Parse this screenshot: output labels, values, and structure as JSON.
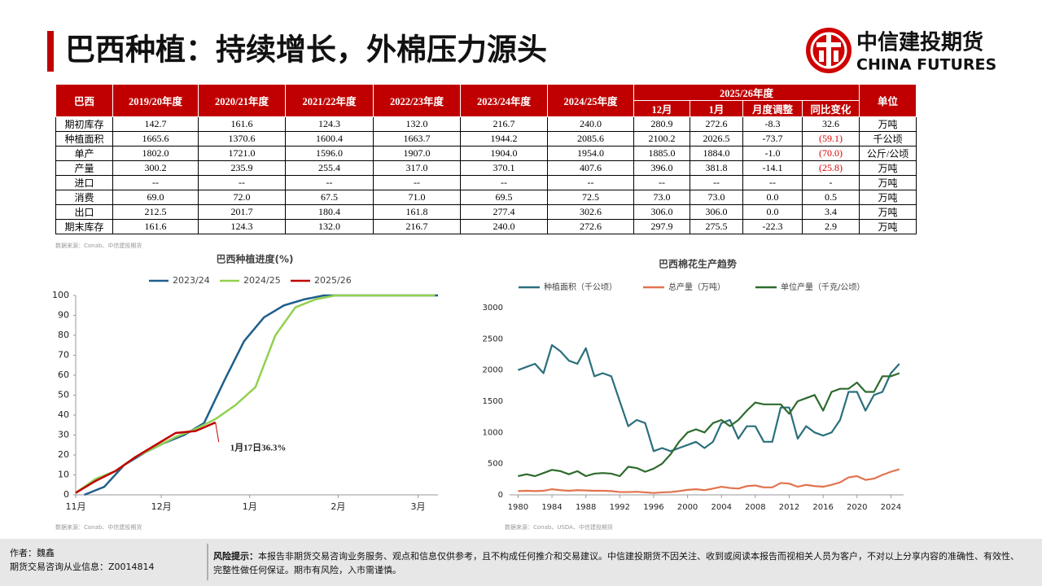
{
  "header": {
    "title": "巴西种植：持续增长，外棉压力源头",
    "logo_cn": "中信建投期货",
    "logo_en": "CHINA FUTURES"
  },
  "table": {
    "corner": "巴西",
    "years": [
      "2019/20年度",
      "2020/21年度",
      "2021/22年度",
      "2022/23年度",
      "2023/24年度",
      "2024/25年度"
    ],
    "group": "2025/26年度",
    "subcolumns": [
      "12月",
      "1月",
      "月度调整",
      "同比变化"
    ],
    "unit_header": "单位",
    "rows": [
      [
        "期初库存",
        "142.7",
        "161.6",
        "124.3",
        "132.0",
        "216.7",
        "240.0",
        "280.9",
        "272.6",
        "-8.3",
        "32.6",
        "万吨"
      ],
      [
        "种植面积",
        "1665.6",
        "1370.6",
        "1600.4",
        "1663.7",
        "1944.2",
        "2085.6",
        "2100.2",
        "2026.5",
        "-73.7",
        "(59.1)",
        "千公顷"
      ],
      [
        "单产",
        "1802.0",
        "1721.0",
        "1596.0",
        "1907.0",
        "1904.0",
        "1954.0",
        "1885.0",
        "1884.0",
        "-1.0",
        "(70.0)",
        "公斤/公顷"
      ],
      [
        "产量",
        "300.2",
        "235.9",
        "255.4",
        "317.0",
        "370.1",
        "407.6",
        "396.0",
        "381.8",
        "-14.1",
        "(25.8)",
        "万吨"
      ],
      [
        "进口",
        "--",
        "--",
        "--",
        "--",
        "--",
        "--",
        "--",
        "--",
        "--",
        "-",
        "万吨"
      ],
      [
        "消费",
        "69.0",
        "72.0",
        "67.5",
        "71.0",
        "69.5",
        "72.5",
        "73.0",
        "73.0",
        "0.0",
        "0.5",
        "万吨"
      ],
      [
        "出口",
        "212.5",
        "201.7",
        "180.4",
        "161.8",
        "277.4",
        "302.6",
        "306.0",
        "306.0",
        "0.0",
        "3.4",
        "万吨"
      ],
      [
        "期末库存",
        "161.6",
        "124.3",
        "132.0",
        "216.7",
        "240.0",
        "272.6",
        "297.9",
        "275.5",
        "-22.3",
        "2.9",
        "万吨"
      ]
    ],
    "source": "数据来源：Conab、中信建投期货"
  },
  "chart_data": [
    {
      "type": "line",
      "title": "巴西种植进度(%)",
      "legend": "top",
      "xlim": [
        0,
        127
      ],
      "xticks": [
        {
          "value": 0,
          "label": "11月"
        },
        {
          "value": 30,
          "label": "12月"
        },
        {
          "value": 61,
          "label": "1月"
        },
        {
          "value": 92,
          "label": "2月"
        },
        {
          "value": 120,
          "label": "3月"
        }
      ],
      "ylim": [
        0,
        100
      ],
      "yticks": [
        0,
        10,
        20,
        30,
        40,
        50,
        60,
        70,
        80,
        90,
        100
      ],
      "grid": false,
      "series": [
        {
          "name": "2023/24",
          "color": "#1f5f8b",
          "x": [
            3,
            10,
            17,
            24,
            31,
            38,
            45,
            52,
            59,
            66,
            73,
            80,
            87,
            94,
            101,
            108,
            115,
            122,
            127
          ],
          "values": [
            0,
            4,
            15,
            21,
            26,
            30,
            36,
            57,
            77,
            89,
            95,
            98,
            100,
            100,
            100,
            100,
            100,
            100,
            100
          ]
        },
        {
          "name": "2024/25",
          "color": "#92d050",
          "x": [
            0,
            7,
            14,
            21,
            28,
            35,
            42,
            49,
            56,
            63,
            70,
            77,
            84,
            91,
            98,
            105,
            112,
            119,
            126
          ],
          "values": [
            1,
            8,
            12,
            19,
            24,
            29,
            33,
            38,
            45,
            54,
            80,
            94,
            98,
            100,
            100,
            100,
            100,
            100,
            100
          ]
        },
        {
          "name": "2025/26",
          "color": "#c00000",
          "x": [
            0,
            7,
            14,
            21,
            28,
            35,
            42,
            49
          ],
          "values": [
            1,
            7,
            12,
            19,
            25,
            31,
            32,
            36.3
          ]
        }
      ],
      "annotations": [
        "1月17日36.3%"
      ],
      "source": "数据来源：Conab、中信建投期货"
    },
    {
      "type": "line",
      "title": "巴西棉花生产趋势",
      "legend": "top",
      "x": [
        1980,
        1981,
        1982,
        1983,
        1984,
        1985,
        1986,
        1987,
        1988,
        1989,
        1990,
        1991,
        1992,
        1993,
        1994,
        1995,
        1996,
        1997,
        1998,
        1999,
        2000,
        2001,
        2002,
        2003,
        2004,
        2005,
        2006,
        2007,
        2008,
        2009,
        2010,
        2011,
        2012,
        2013,
        2014,
        2015,
        2016,
        2017,
        2018,
        2019,
        2020,
        2021,
        2022,
        2023,
        2024,
        2025
      ],
      "xlim": [
        1979,
        2025.5
      ],
      "xticks": [
        1980,
        1984,
        1988,
        1992,
        1996,
        2000,
        2004,
        2008,
        2012,
        2016,
        2020,
        2024
      ],
      "ylim": [
        0,
        3000
      ],
      "yticks": [
        0,
        500,
        1000,
        1500,
        2000,
        2500,
        3000
      ],
      "grid": false,
      "series": [
        {
          "name": "种植面积（千公顷）",
          "color": "#2b6f7c",
          "values": [
            2000,
            2050,
            2100,
            1950,
            2400,
            2300,
            2150,
            2100,
            2350,
            1900,
            1950,
            1900,
            1500,
            1100,
            1200,
            1150,
            700,
            750,
            700,
            750,
            800,
            850,
            750,
            850,
            1150,
            1200,
            900,
            1100,
            1100,
            850,
            850,
            1400,
            1400,
            900,
            1100,
            1000,
            950,
            1000,
            1200,
            1650,
            1650,
            1350,
            1600,
            1650,
            1950,
            2100
          ]
        },
        {
          "name": "总产量（万吨）",
          "color": "#e2734f",
          "values": [
            60,
            65,
            60,
            65,
            90,
            75,
            65,
            75,
            70,
            65,
            65,
            60,
            45,
            45,
            50,
            40,
            30,
            40,
            45,
            60,
            80,
            90,
            75,
            100,
            130,
            110,
            100,
            140,
            150,
            120,
            120,
            190,
            180,
            130,
            160,
            140,
            130,
            160,
            200,
            280,
            300,
            240,
            260,
            320,
            370,
            410
          ]
        },
        {
          "name": "单位产量（千克/公顷）",
          "color": "#2e6b2e",
          "values": [
            300,
            330,
            300,
            350,
            400,
            380,
            330,
            380,
            300,
            340,
            350,
            340,
            300,
            450,
            430,
            370,
            420,
            500,
            650,
            850,
            1000,
            1050,
            1000,
            1150,
            1200,
            1100,
            1200,
            1350,
            1480,
            1450,
            1450,
            1450,
            1300,
            1500,
            1550,
            1600,
            1350,
            1650,
            1700,
            1700,
            1800,
            1650,
            1650,
            1900,
            1900,
            1950
          ]
        }
      ],
      "source": "数据来源：Conab、USDA、中信建投期货"
    }
  ],
  "footer": {
    "author": "作者：魏鑫",
    "license": "期货交易咨询从业信息：Z0014814",
    "risk_label": "风险提示：",
    "risk_text": "本报告非期货交易咨询业务服务、观点和信息仅供参考，且不构成任何推介和交易建议。中信建投期货不因关注、收到或阅读本报告而视相关人员为客户，不对以上分享内容的准确性、有效性、完整性做任何保证。期市有风险，入市需谨慎。"
  }
}
